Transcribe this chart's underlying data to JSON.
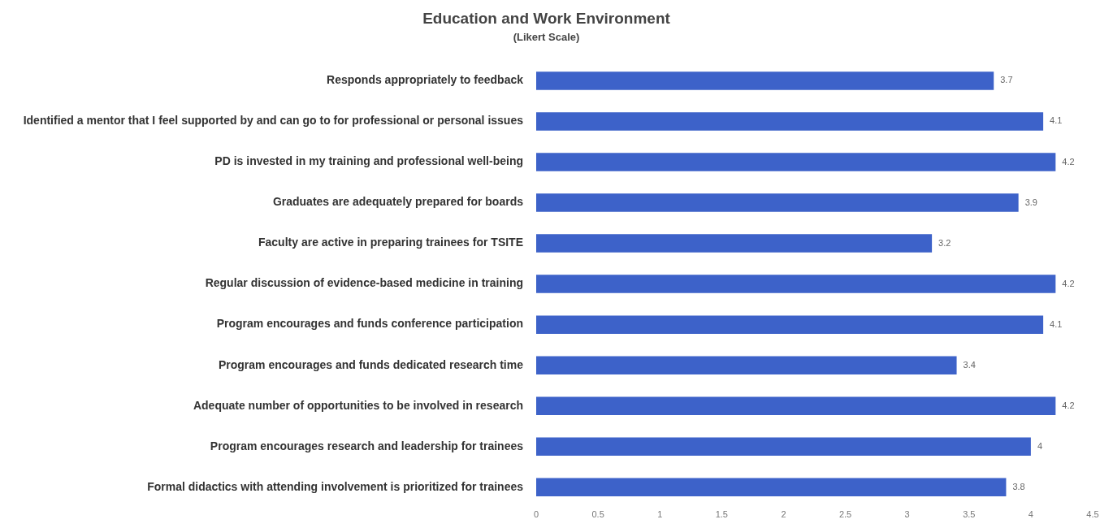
{
  "chart_data": {
    "type": "bar",
    "orientation": "horizontal",
    "title": "Education and Work Environment",
    "subtitle": "(Likert Scale)",
    "categories": [
      "Responds appropriately to feedback",
      "Identified a mentor that I feel supported by and can go to for professional or personal issues",
      "PD is invested in my training and professional well-being",
      "Graduates are adequately prepared for boards",
      "Faculty are active in preparing trainees for TSITE",
      "Regular discussion of evidence-based medicine in training",
      "Program encourages and funds conference participation",
      "Program encourages and funds dedicated research time",
      "Adequate number of opportunities to be involved in research",
      "Program encourages research and leadership for trainees",
      "Formal didactics with attending involvement is prioritized for trainees"
    ],
    "values": [
      3.7,
      4.1,
      4.2,
      3.9,
      3.2,
      4.2,
      4.1,
      3.4,
      4.2,
      4,
      3.8
    ],
    "color": "#3d62c9",
    "xlim": [
      0,
      4.5
    ],
    "xticks": [
      0,
      0.5,
      1,
      1.5,
      2,
      2.5,
      3,
      3.5,
      4,
      4.5
    ],
    "grid": false,
    "legend": false,
    "data_labels": true
  }
}
